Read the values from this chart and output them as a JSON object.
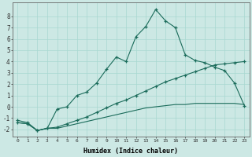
{
  "xlabel": "Humidex (Indice chaleur)",
  "bg_color": "#cce8e4",
  "line_color": "#1a6b5a",
  "grid_color": "#a8d8d0",
  "xlim": [
    -0.5,
    23.5
  ],
  "ylim": [
    -2.6,
    9.2
  ],
  "xticks": [
    0,
    1,
    2,
    3,
    4,
    5,
    6,
    7,
    8,
    9,
    10,
    11,
    12,
    13,
    14,
    15,
    16,
    17,
    18,
    19,
    20,
    21,
    22,
    23
  ],
  "yticks": [
    -2,
    -1,
    0,
    1,
    2,
    3,
    4,
    5,
    6,
    7,
    8
  ],
  "line1_x": [
    0,
    1,
    2,
    3,
    4,
    5,
    6,
    7,
    8,
    9,
    10,
    11,
    12,
    13,
    14,
    15,
    16,
    17,
    18,
    19,
    20,
    21,
    22,
    23
  ],
  "line1_y": [
    -1.2,
    -1.4,
    -2.1,
    -1.9,
    -0.2,
    0.0,
    1.0,
    1.3,
    2.1,
    3.3,
    4.4,
    4.0,
    6.2,
    7.1,
    8.6,
    7.6,
    7.0,
    4.6,
    4.1,
    3.9,
    3.5,
    3.2,
    2.1,
    0.1
  ],
  "line2_x": [
    0,
    1,
    2,
    3,
    4,
    5,
    6,
    7,
    8,
    9,
    10,
    11,
    12,
    13,
    14,
    15,
    16,
    17,
    18,
    19,
    20,
    21,
    22,
    23
  ],
  "line2_y": [
    -1.4,
    -1.5,
    -2.1,
    -1.9,
    -1.8,
    -1.5,
    -1.2,
    -0.9,
    -0.5,
    -0.1,
    0.3,
    0.6,
    1.0,
    1.4,
    1.8,
    2.2,
    2.5,
    2.8,
    3.1,
    3.4,
    3.7,
    3.8,
    3.9,
    4.0
  ],
  "line3_x": [
    0,
    1,
    2,
    3,
    4,
    5,
    6,
    7,
    8,
    9,
    10,
    11,
    12,
    13,
    14,
    15,
    16,
    17,
    18,
    19,
    20,
    21,
    22,
    23
  ],
  "line3_y": [
    -1.4,
    -1.5,
    -2.1,
    -1.9,
    -1.9,
    -1.7,
    -1.5,
    -1.3,
    -1.1,
    -0.9,
    -0.7,
    -0.5,
    -0.3,
    -0.1,
    0.0,
    0.1,
    0.2,
    0.2,
    0.3,
    0.3,
    0.3,
    0.3,
    0.3,
    0.2
  ]
}
